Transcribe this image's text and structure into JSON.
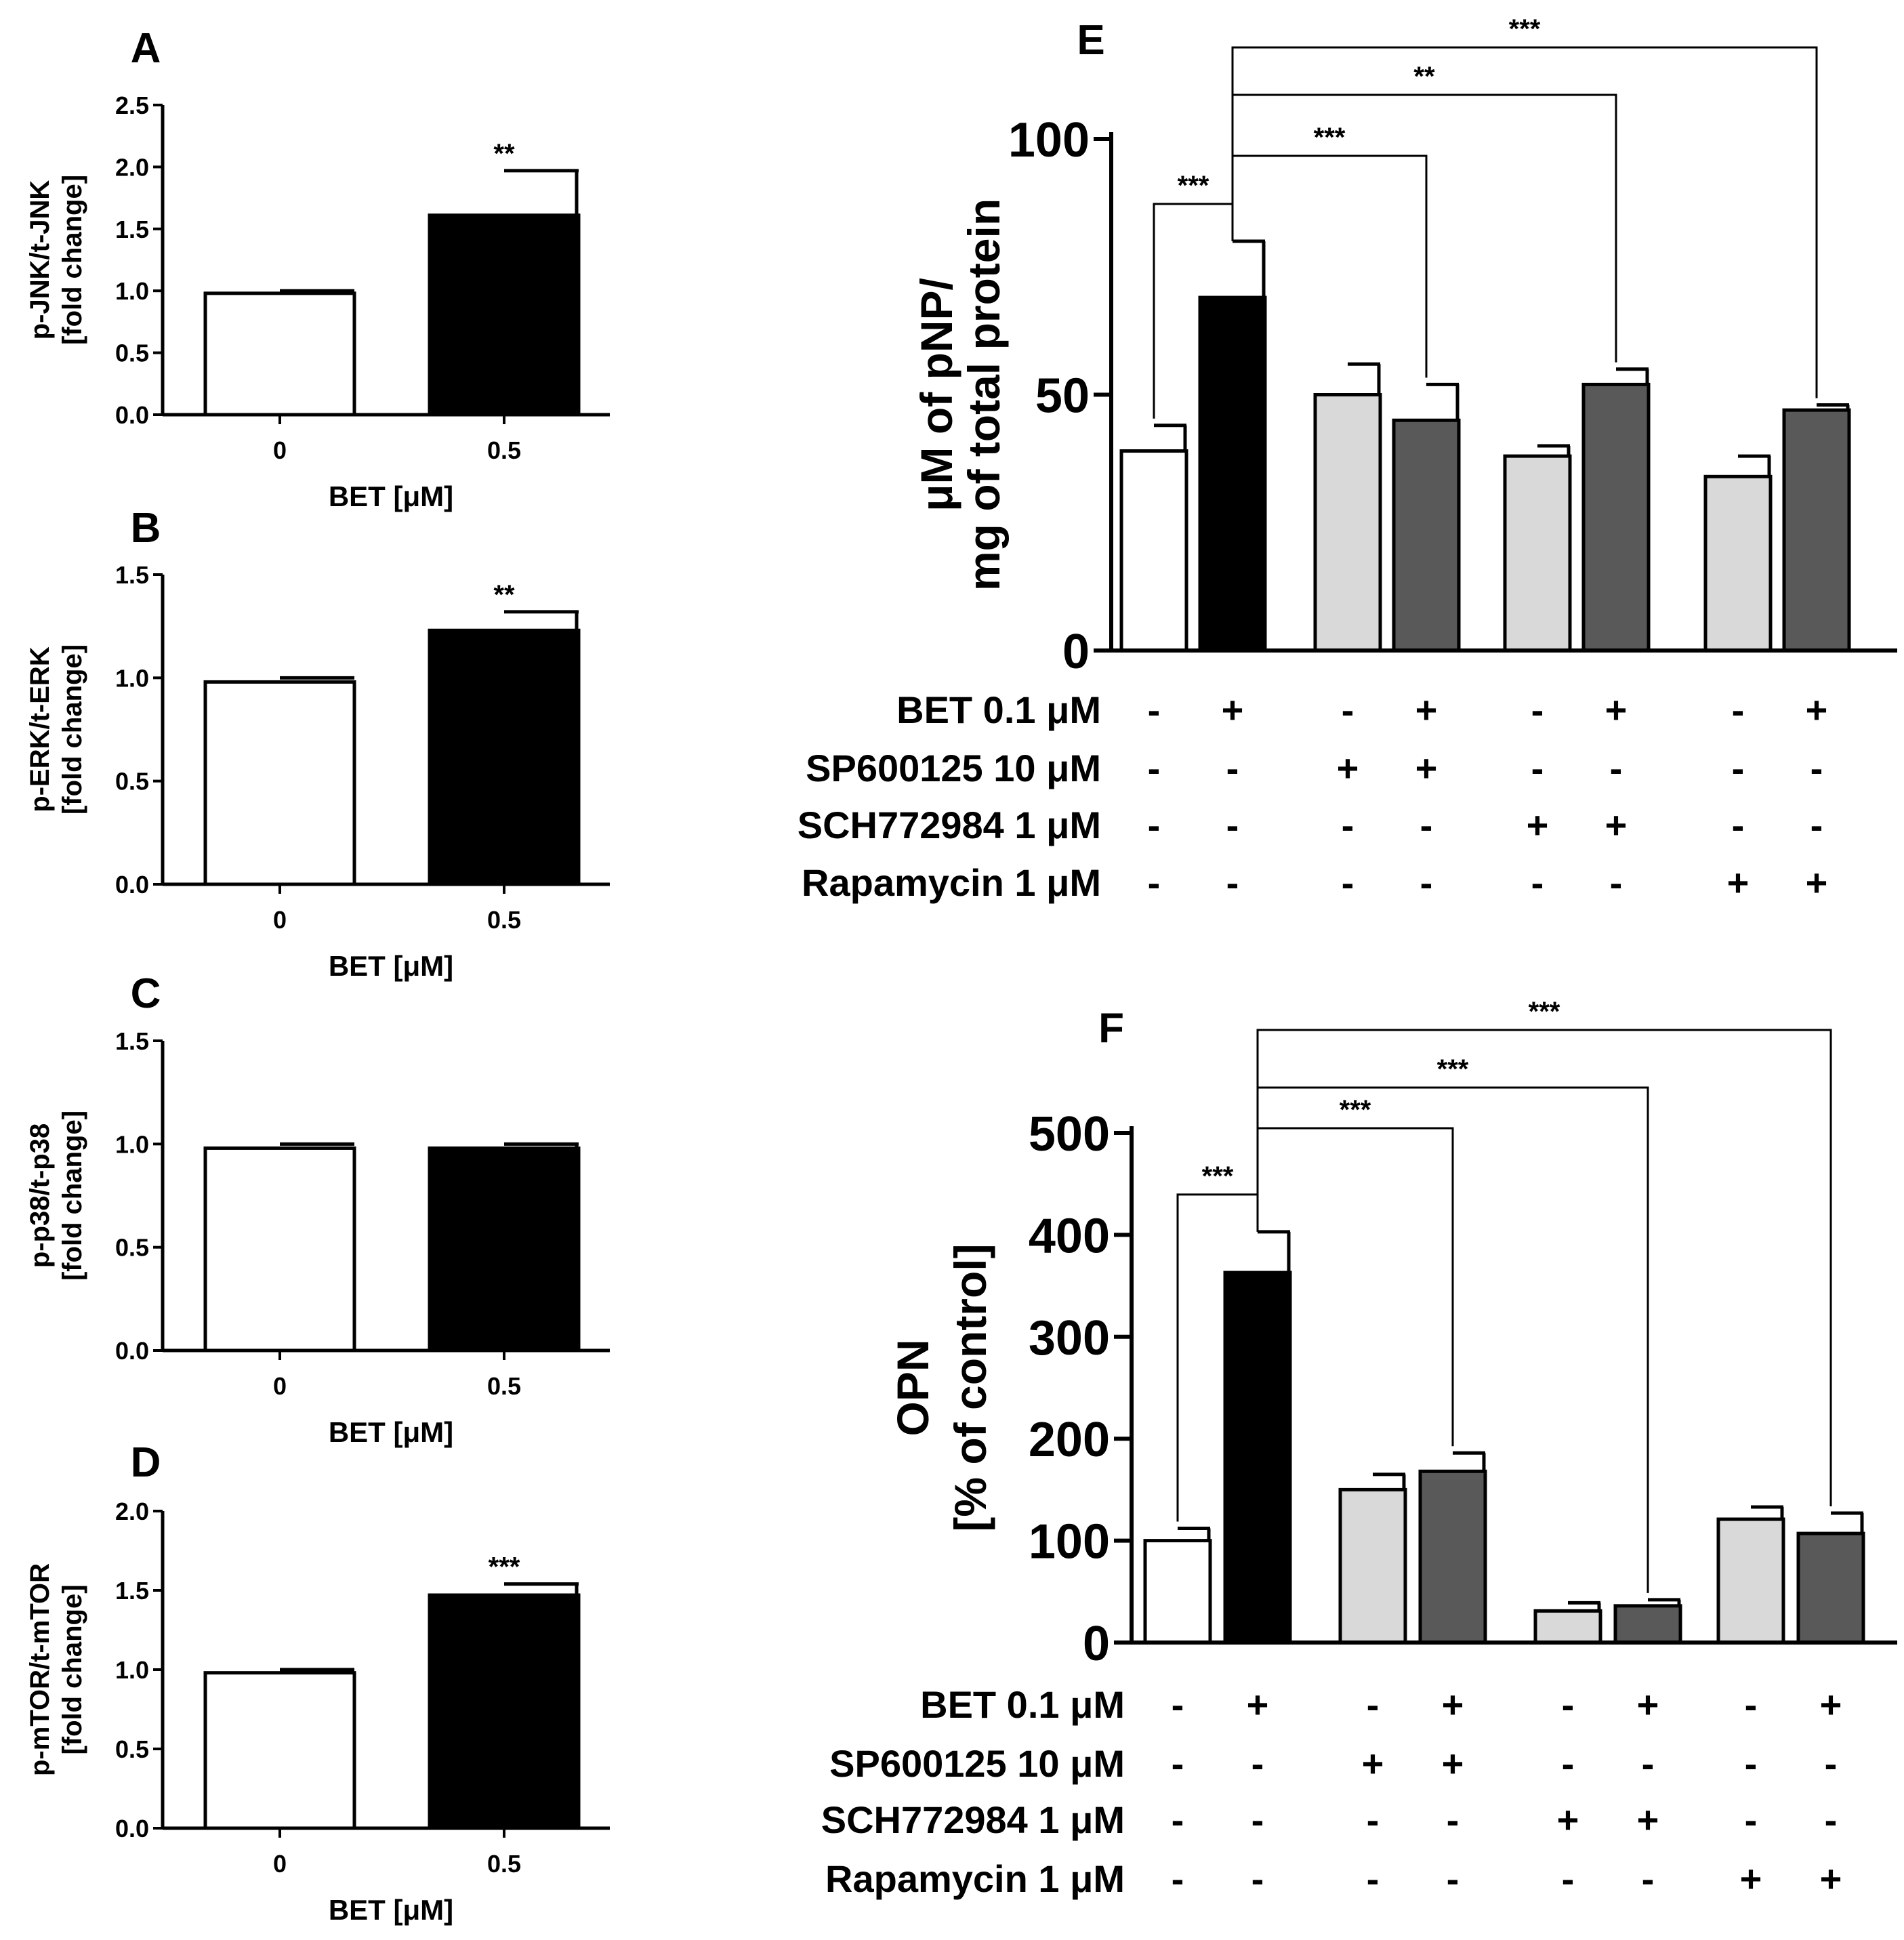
{
  "chart_data": [
    {
      "panel": "A",
      "type": "bar",
      "categories": [
        "0",
        "0.5"
      ],
      "values": [
        0.98,
        1.61
      ],
      "errors": [
        0.02,
        0.36
      ],
      "colors": [
        "#ffffff",
        "#000000"
      ],
      "significance": [
        "",
        "**"
      ],
      "xlabel": "BET [μM]",
      "ylabel": [
        "p-JNK/t-JNK",
        "[fold change]"
      ],
      "yticks": [
        "0.0",
        "0.5",
        "1.0",
        "1.5",
        "2.0",
        "2.5"
      ],
      "ylim": [
        0,
        2.5
      ]
    },
    {
      "panel": "B",
      "type": "bar",
      "categories": [
        "0",
        "0.5"
      ],
      "values": [
        0.98,
        1.23
      ],
      "errors": [
        0.02,
        0.09
      ],
      "colors": [
        "#ffffff",
        "#000000"
      ],
      "significance": [
        "",
        "**"
      ],
      "xlabel": "BET [μM]",
      "ylabel": [
        "p-ERK/t-ERK",
        "[fold change]"
      ],
      "yticks": [
        "0.0",
        "0.5",
        "1.0",
        "1.5"
      ],
      "ylim": [
        0,
        1.5
      ]
    },
    {
      "panel": "C",
      "type": "bar",
      "categories": [
        "0",
        "0.5"
      ],
      "values": [
        0.98,
        0.98
      ],
      "errors": [
        0.02,
        0.02
      ],
      "colors": [
        "#ffffff",
        "#000000"
      ],
      "significance": [
        "",
        ""
      ],
      "xlabel": "BET [μM]",
      "ylabel": [
        "p-p38/t-p38",
        "[fold change]"
      ],
      "yticks": [
        "0.0",
        "0.5",
        "1.0",
        "1.5"
      ],
      "ylim": [
        0,
        1.5
      ]
    },
    {
      "panel": "D",
      "type": "bar",
      "categories": [
        "0",
        "0.5"
      ],
      "values": [
        0.98,
        1.47
      ],
      "errors": [
        0.02,
        0.07
      ],
      "colors": [
        "#ffffff",
        "#000000"
      ],
      "significance": [
        "",
        "***"
      ],
      "xlabel": "BET [μM]",
      "ylabel": [
        "p-mTOR/t-mTOR",
        "[fold change]"
      ],
      "yticks": [
        "0.0",
        "0.5",
        "1.0",
        "1.5",
        "2.0"
      ],
      "ylim": [
        0,
        2.0
      ]
    },
    {
      "panel": "E",
      "type": "bar",
      "values": [
        39,
        69,
        50,
        45,
        38,
        52,
        34,
        47
      ],
      "errors": [
        5,
        11,
        6,
        7,
        2,
        3,
        4,
        1
      ],
      "colors": [
        "#ffffff",
        "#000000",
        "#d9d9d9",
        "#595959",
        "#d9d9d9",
        "#595959",
        "#d9d9d9",
        "#595959"
      ],
      "ylabel": [
        "μM of pNP/",
        "mg of total protein"
      ],
      "yticks": [
        "0",
        "50",
        "100"
      ],
      "ylim": [
        0,
        100
      ],
      "treatments": [
        {
          "label": "BET 0.1 μM",
          "values": [
            "-",
            "+",
            "-",
            "+",
            "-",
            "+",
            "-",
            "+"
          ]
        },
        {
          "label": "SP600125 10 μM",
          "values": [
            "-",
            "-",
            "+",
            "+",
            "-",
            "-",
            "-",
            "-"
          ]
        },
        {
          "label": "SCH772984 1 μM",
          "values": [
            "-",
            "-",
            "-",
            "-",
            "+",
            "+",
            "-",
            "-"
          ]
        },
        {
          "label": "Rapamycin  1 μM",
          "values": [
            "-",
            "-",
            "-",
            "-",
            "-",
            "-",
            "+",
            "+"
          ]
        }
      ],
      "comparisons": [
        {
          "from": 1,
          "to": 0,
          "label": "***"
        },
        {
          "from": 1,
          "to": 3,
          "label": "***"
        },
        {
          "from": 1,
          "to": 5,
          "label": "**"
        },
        {
          "from": 1,
          "to": 7,
          "label": "***"
        }
      ]
    },
    {
      "panel": "F",
      "type": "bar",
      "values": [
        100,
        363,
        150,
        168,
        31,
        36,
        121,
        107
      ],
      "errors": [
        12,
        40,
        15,
        18,
        8,
        6,
        12,
        20
      ],
      "colors": [
        "#ffffff",
        "#000000",
        "#d9d9d9",
        "#595959",
        "#d9d9d9",
        "#595959",
        "#d9d9d9",
        "#595959"
      ],
      "ylabel": [
        "OPN",
        "[% of control]"
      ],
      "yticks": [
        "0",
        "100",
        "200",
        "300",
        "400",
        "500"
      ],
      "ylim": [
        0,
        500
      ],
      "treatments": [
        {
          "label": "BET 0.1 μM",
          "values": [
            "-",
            "+",
            "-",
            "+",
            "-",
            "+",
            "-",
            "+"
          ]
        },
        {
          "label": "SP600125 10 μM",
          "values": [
            "-",
            "-",
            "+",
            "+",
            "-",
            "-",
            "-",
            "-"
          ]
        },
        {
          "label": "SCH772984 1 μM",
          "values": [
            "-",
            "-",
            "-",
            "-",
            "+",
            "+",
            "-",
            "-"
          ]
        },
        {
          "label": "Rapamycin  1 μM",
          "values": [
            "-",
            "-",
            "-",
            "-",
            "-",
            "-",
            "+",
            "+"
          ]
        }
      ],
      "comparisons": [
        {
          "from": 1,
          "to": 0,
          "label": "***"
        },
        {
          "from": 1,
          "to": 3,
          "label": "***"
        },
        {
          "from": 1,
          "to": 5,
          "label": "***"
        },
        {
          "from": 1,
          "to": 7,
          "label": "***"
        }
      ]
    }
  ]
}
